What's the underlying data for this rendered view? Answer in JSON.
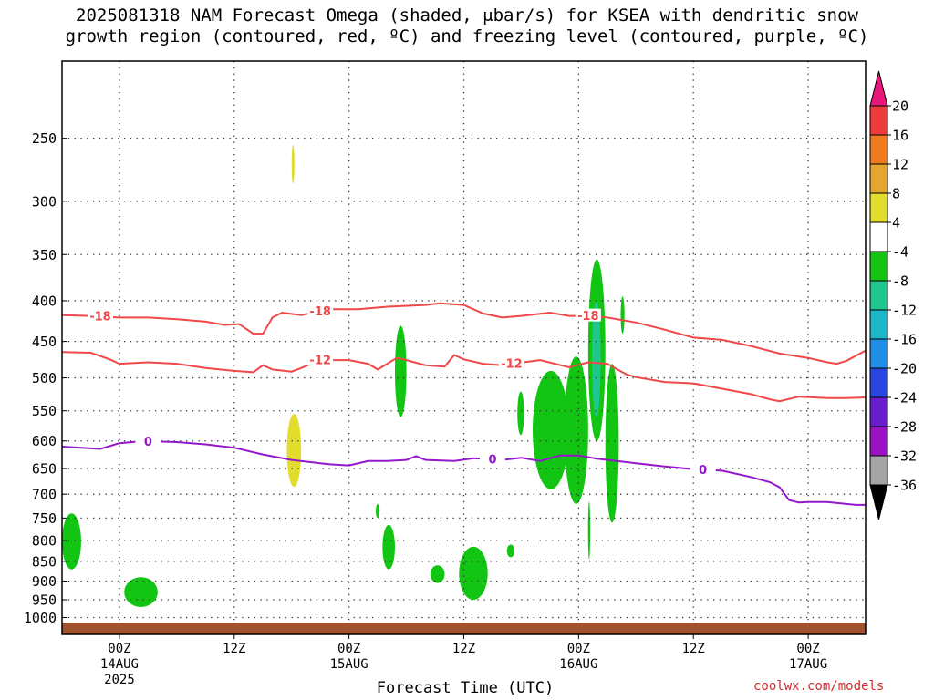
{
  "title_line1": "2025081318 NAM Forecast Omega (shaded, μbar/s) for KSEA with dendritic snow",
  "title_line2": "growth region (contoured, red, ºC) and freezing level (contoured, purple, ºC)",
  "xlabel": "Forecast Time (UTC)",
  "credit": "coolwx.com/models",
  "chart_data": {
    "type": "heatmap",
    "title": "2025081318 NAM Forecast Omega (shaded, μbar/s) for KSEA with dendritic snow growth region (contoured, red, ºC) and freezing level (contoured, purple, ºC)",
    "xlabel": "Forecast Time (UTC)",
    "ylabel": "",
    "xlim_hours": [
      0,
      84
    ],
    "ylim_hpa": [
      1050,
      200
    ],
    "y_ticks": [
      250,
      300,
      350,
      400,
      450,
      500,
      550,
      600,
      650,
      700,
      750,
      800,
      850,
      900,
      950,
      1000
    ],
    "x_ticks": [
      {
        "hour": 6,
        "label": "00Z",
        "sub1": "14AUG",
        "sub2": "2025"
      },
      {
        "hour": 18,
        "label": "12Z",
        "sub1": "",
        "sub2": ""
      },
      {
        "hour": 30,
        "label": "00Z",
        "sub1": "15AUG",
        "sub2": ""
      },
      {
        "hour": 42,
        "label": "12Z",
        "sub1": "",
        "sub2": ""
      },
      {
        "hour": 54,
        "label": "00Z",
        "sub1": "16AUG",
        "sub2": ""
      },
      {
        "hour": 66,
        "label": "12Z",
        "sub1": "",
        "sub2": ""
      },
      {
        "hour": 78,
        "label": "00Z",
        "sub1": "17AUG",
        "sub2": ""
      }
    ],
    "grid": true,
    "colorbar": {
      "labels": [
        "20",
        "16",
        "12",
        "8",
        "4",
        "-4",
        "-8",
        "-12",
        "-16",
        "-20",
        "-24",
        "-28",
        "-32",
        "-36"
      ],
      "colors": [
        "#e8177b",
        "#ef3b3b",
        "#f07a1e",
        "#e6a52e",
        "#e2dc2c",
        "#ffffff",
        "#13c513",
        "#1fc68f",
        "#1bb7c9",
        "#1f8ee6",
        "#2a46e0",
        "#6a1dcf",
        "#9a12c4",
        "#a4a4a4",
        "#000000"
      ]
    },
    "contours": [
      {
        "name": "-18",
        "color": "#f04848",
        "label_at_hours": [
          4,
          27,
          55
        ],
        "points": [
          [
            0,
            417
          ],
          [
            3,
            418
          ],
          [
            6,
            420
          ],
          [
            9,
            420
          ],
          [
            12,
            422
          ],
          [
            15,
            425
          ],
          [
            17,
            429
          ],
          [
            18.5,
            428
          ],
          [
            20,
            440
          ],
          [
            21,
            440
          ],
          [
            22,
            420
          ],
          [
            23,
            414
          ],
          [
            25,
            417
          ],
          [
            28,
            410
          ],
          [
            31,
            410
          ],
          [
            34,
            407
          ],
          [
            38,
            405
          ],
          [
            39.5,
            403
          ],
          [
            42,
            405
          ],
          [
            44,
            415
          ],
          [
            46,
            420
          ],
          [
            48,
            418
          ],
          [
            51,
            414
          ],
          [
            53,
            418
          ],
          [
            55,
            418
          ],
          [
            57,
            420
          ],
          [
            60,
            426
          ],
          [
            63,
            435
          ],
          [
            66,
            445
          ],
          [
            69,
            448
          ],
          [
            72,
            456
          ],
          [
            75,
            466
          ],
          [
            78,
            472
          ],
          [
            80,
            478
          ],
          [
            81,
            480
          ],
          [
            82,
            476
          ],
          [
            84,
            462
          ]
        ]
      },
      {
        "name": "-12",
        "color": "#f04848",
        "label_at_hours": [
          27,
          47
        ],
        "points": [
          [
            0,
            464
          ],
          [
            3,
            465
          ],
          [
            5,
            474
          ],
          [
            6,
            480
          ],
          [
            9,
            478
          ],
          [
            12,
            480
          ],
          [
            15,
            486
          ],
          [
            18,
            490
          ],
          [
            20,
            492
          ],
          [
            21,
            482
          ],
          [
            22,
            488
          ],
          [
            24,
            491
          ],
          [
            25,
            486
          ],
          [
            27,
            475
          ],
          [
            30,
            475
          ],
          [
            32,
            480
          ],
          [
            33,
            488
          ],
          [
            35,
            472
          ],
          [
            36,
            475
          ],
          [
            38,
            482
          ],
          [
            40,
            484
          ],
          [
            41,
            468
          ],
          [
            42,
            474
          ],
          [
            44,
            480
          ],
          [
            46,
            482
          ],
          [
            47,
            480
          ],
          [
            50,
            475
          ],
          [
            53,
            485
          ],
          [
            55,
            478
          ],
          [
            57,
            480
          ],
          [
            59,
            495
          ],
          [
            60,
            499
          ],
          [
            63,
            506
          ],
          [
            66,
            508
          ],
          [
            69,
            516
          ],
          [
            72,
            524
          ],
          [
            74,
            532
          ],
          [
            75,
            535
          ],
          [
            77,
            528
          ],
          [
            80,
            530
          ],
          [
            82,
            530
          ],
          [
            84,
            529
          ]
        ]
      },
      {
        "name": "0",
        "color": "#9418c9",
        "label_at_hours": [
          9,
          45,
          67
        ],
        "points": [
          [
            0,
            610
          ],
          [
            2,
            612
          ],
          [
            4,
            614
          ],
          [
            6,
            604
          ],
          [
            8,
            601
          ],
          [
            10,
            601
          ],
          [
            12,
            602
          ],
          [
            15,
            606
          ],
          [
            18,
            612
          ],
          [
            21,
            624
          ],
          [
            24,
            634
          ],
          [
            27,
            640
          ],
          [
            28,
            642
          ],
          [
            30,
            644
          ],
          [
            32,
            636
          ],
          [
            34,
            636
          ],
          [
            36,
            634
          ],
          [
            37,
            627
          ],
          [
            38,
            634
          ],
          [
            41,
            636
          ],
          [
            43,
            631
          ],
          [
            46,
            634
          ],
          [
            48,
            630
          ],
          [
            50,
            636
          ],
          [
            52,
            626
          ],
          [
            54,
            626
          ],
          [
            56,
            632
          ],
          [
            58,
            636
          ],
          [
            60,
            640
          ],
          [
            63,
            646
          ],
          [
            66,
            651
          ],
          [
            69,
            654
          ],
          [
            72,
            666
          ],
          [
            74,
            676
          ],
          [
            75,
            686
          ],
          [
            76,
            712
          ],
          [
            77,
            717
          ],
          [
            78,
            716
          ],
          [
            80,
            716
          ],
          [
            82,
            720
          ],
          [
            83,
            722
          ],
          [
            84,
            722
          ]
        ]
      }
    ],
    "shaded_regions": [
      {
        "value_range": [
          -8,
          -4
        ],
        "color": "#13c513",
        "hours": [
          0,
          2
        ],
        "pressure_hpa": [
          740,
          870
        ]
      },
      {
        "value_range": [
          -8,
          -4
        ],
        "color": "#13c513",
        "hours": [
          6.5,
          10
        ],
        "pressure_hpa": [
          890,
          970
        ]
      },
      {
        "value_range": [
          4,
          8
        ],
        "color": "#e2dc2c",
        "hours": [
          24,
          24.3
        ],
        "pressure_hpa": [
          255,
          285
        ]
      },
      {
        "value_range": [
          4,
          12
        ],
        "color": "#e2dc2c",
        "hours": [
          23.5,
          25
        ],
        "pressure_hpa": [
          555,
          685
        ]
      },
      {
        "value_range": [
          -8,
          -4
        ],
        "color": "#13c513",
        "hours": [
          34.8,
          36
        ],
        "pressure_hpa": [
          430,
          560
        ]
      },
      {
        "value_range": [
          -8,
          -4
        ],
        "color": "#13c513",
        "hours": [
          32.8,
          33.2
        ],
        "pressure_hpa": [
          720,
          750
        ]
      },
      {
        "value_range": [
          -8,
          -4
        ],
        "color": "#13c513",
        "hours": [
          33.5,
          34.8
        ],
        "pressure_hpa": [
          765,
          870
        ]
      },
      {
        "value_range": [
          -8,
          -4
        ],
        "color": "#13c513",
        "hours": [
          38.5,
          40
        ],
        "pressure_hpa": [
          860,
          905
        ]
      },
      {
        "value_range": [
          -8,
          -4
        ],
        "color": "#13c513",
        "hours": [
          41.5,
          44.5
        ],
        "pressure_hpa": [
          815,
          950
        ]
      },
      {
        "value_range": [
          -8,
          -4
        ],
        "color": "#13c513",
        "hours": [
          46.5,
          47.3
        ],
        "pressure_hpa": [
          810,
          840
        ]
      },
      {
        "value_range": [
          -8,
          -4
        ],
        "color": "#13c513",
        "hours": [
          47.6,
          48.3
        ],
        "pressure_hpa": [
          520,
          590
        ]
      },
      {
        "value_range": [
          -8,
          -4
        ],
        "color": "#13c513",
        "hours": [
          49.2,
          53
        ],
        "pressure_hpa": [
          490,
          690
        ]
      },
      {
        "value_range": [
          -8,
          -4
        ],
        "color": "#13c513",
        "hours": [
          52.5,
          55
        ],
        "pressure_hpa": [
          470,
          720
        ]
      },
      {
        "value_range": [
          -8,
          -4
        ],
        "color": "#13c513",
        "hours": [
          55,
          56.8
        ],
        "pressure_hpa": [
          355,
          600
        ]
      },
      {
        "value_range": [
          -12,
          -8
        ],
        "color": "#1fc68f",
        "hours": [
          55.4,
          56.3
        ],
        "pressure_hpa": [
          400,
          560
        ]
      },
      {
        "value_range": [
          -8,
          -4
        ],
        "color": "#13c513",
        "hours": [
          56.8,
          58.2
        ],
        "pressure_hpa": [
          480,
          760
        ]
      },
      {
        "value_range": [
          -8,
          -4
        ],
        "color": "#13c513",
        "hours": [
          58.4,
          58.8
        ],
        "pressure_hpa": [
          395,
          440
        ]
      },
      {
        "value_range": [
          -8,
          -4
        ],
        "color": "#13c513",
        "hours": [
          55,
          55.2
        ],
        "pressure_hpa": [
          715,
          845
        ]
      }
    ],
    "terrain": {
      "color": "#a0522d",
      "below_hpa": 1015
    }
  }
}
